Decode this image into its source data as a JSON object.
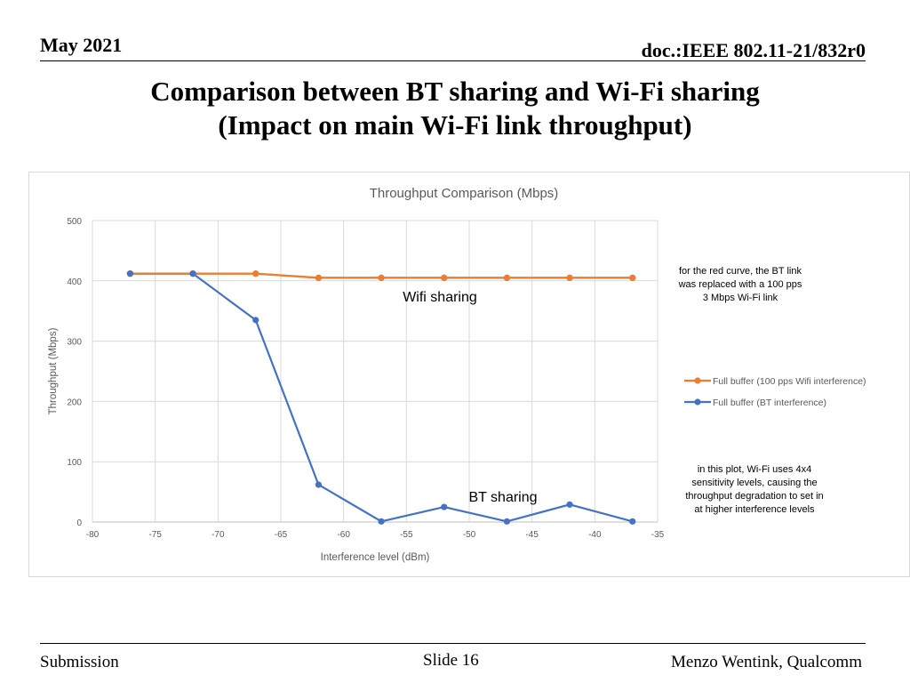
{
  "header": {
    "date": "May 2021",
    "doc": "doc.:IEEE 802.11-21/832r0"
  },
  "title": {
    "line1": "Comparison between BT sharing and Wi-Fi sharing",
    "line2": "(Impact on main Wi-Fi link throughput)"
  },
  "footer": {
    "left": "Submission",
    "center": "Slide 16",
    "right": "Menzo Wentink, Qualcomm"
  },
  "chart_data": {
    "type": "line",
    "title": "Throughput Comparison (Mbps)",
    "xlabel": "Interference level (dBm)",
    "ylabel": "Throughput (Mbps)",
    "xlim": [
      -80,
      -35
    ],
    "ylim": [
      0,
      500
    ],
    "xticks": [
      -80,
      -75,
      -70,
      -65,
      -60,
      -55,
      -50,
      -45,
      -40,
      -35
    ],
    "yticks": [
      0,
      100,
      200,
      300,
      400,
      500
    ],
    "grid": true,
    "legend_position": "right",
    "series": [
      {
        "name": "Full buffer (100 pps Wifi interference)",
        "color": "#ED7D31",
        "x": [
          -77,
          -72,
          -67,
          -62,
          -57,
          -52,
          -47,
          -42,
          -37
        ],
        "y": [
          412,
          412,
          412,
          405,
          405,
          405,
          405,
          405,
          405
        ]
      },
      {
        "name": "Full buffer (BT interference)",
        "color": "#4472C4",
        "x": [
          -77,
          -72,
          -67,
          -62,
          -57,
          -52,
          -47,
          -42,
          -37
        ],
        "y": [
          412,
          412,
          335,
          62,
          1,
          25,
          1,
          29,
          1
        ]
      }
    ],
    "annotations": [
      {
        "text": "Wifi sharing"
      },
      {
        "text": "BT sharing"
      }
    ],
    "notes": [
      {
        "lines": [
          "for the red curve, the BT link",
          "was replaced with a 100 pps",
          "3 Mbps Wi-Fi link"
        ]
      },
      {
        "lines": [
          "in this plot, Wi-Fi uses 4x4",
          "sensitivity levels, causing the",
          "throughput degradation to set in",
          "at higher interference levels"
        ]
      }
    ]
  }
}
